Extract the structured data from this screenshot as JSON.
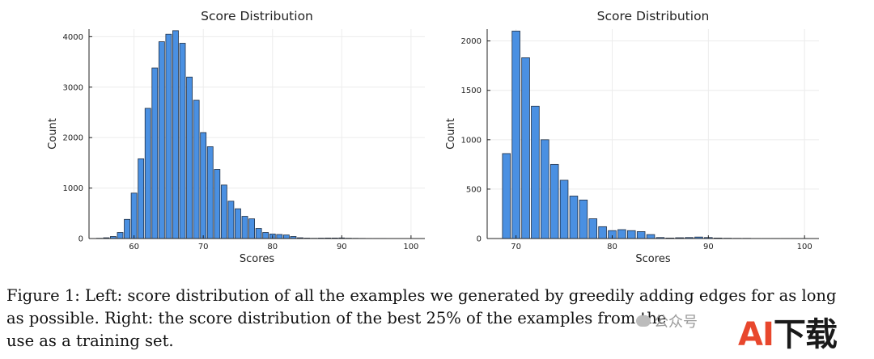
{
  "chart_data": [
    {
      "type": "bar",
      "title": "Score Distribution",
      "xlabel": "Scores",
      "ylabel": "Count",
      "xlim": [
        53.5,
        102
      ],
      "ylim": [
        0,
        4150
      ],
      "xticks": [
        60,
        70,
        80,
        90,
        100
      ],
      "yticks": [
        0,
        1000,
        2000,
        3000,
        4000
      ],
      "grid": true,
      "bar_color": "#4a90e2",
      "x": [
        55,
        56,
        57,
        58,
        59,
        60,
        61,
        62,
        63,
        64,
        65,
        66,
        67,
        68,
        69,
        70,
        71,
        72,
        73,
        74,
        75,
        76,
        77,
        78,
        79,
        80,
        81,
        82,
        83,
        84,
        85,
        86,
        87,
        88,
        89,
        90,
        91,
        92,
        93,
        94,
        95,
        96,
        97,
        98,
        99,
        100
      ],
      "values": [
        5,
        15,
        40,
        120,
        380,
        900,
        1580,
        2580,
        3380,
        3900,
        4050,
        4120,
        3870,
        3200,
        2740,
        2100,
        1820,
        1370,
        1060,
        740,
        590,
        440,
        390,
        200,
        120,
        90,
        80,
        70,
        40,
        15,
        8,
        5,
        8,
        10,
        10,
        12,
        6,
        4,
        3,
        2,
        2,
        2,
        1,
        1,
        1,
        1
      ]
    },
    {
      "type": "bar",
      "title": "Score Distribution",
      "xlabel": "Scores",
      "ylabel": "Count",
      "xlim": [
        67,
        101.5
      ],
      "ylim": [
        0,
        2120
      ],
      "xticks": [
        70,
        80,
        90,
        100
      ],
      "yticks": [
        0,
        500,
        1000,
        1500,
        2000
      ],
      "grid": true,
      "bar_color": "#4a90e2",
      "x": [
        69,
        70,
        71,
        72,
        73,
        74,
        75,
        76,
        77,
        78,
        79,
        80,
        81,
        82,
        83,
        84,
        85,
        86,
        87,
        88,
        89,
        90,
        91,
        92,
        93,
        94,
        95,
        96,
        97,
        98,
        99,
        100
      ],
      "values": [
        860,
        2100,
        1830,
        1340,
        1000,
        750,
        590,
        430,
        390,
        200,
        120,
        80,
        90,
        80,
        70,
        40,
        10,
        5,
        8,
        10,
        15,
        10,
        5,
        3,
        2,
        2,
        1,
        1,
        1,
        1,
        1,
        1
      ]
    }
  ],
  "caption": {
    "line1": "Figure 1: Left: score distribution of all the examples we generated by greedily adding edges for as long",
    "line2": "as possible. Right: the score distribution of the best 25% of the examples from the",
    "line3": "use as a training set."
  },
  "watermark": {
    "small_text": "公众号",
    "logo_a": "AI",
    "logo_rest": "下载"
  }
}
